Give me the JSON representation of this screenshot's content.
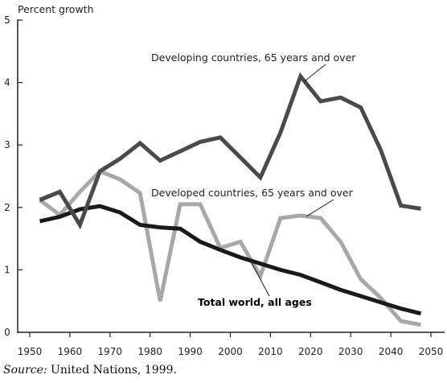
{
  "chart_data": {
    "type": "line",
    "ylabel": "Percent growth",
    "xlabel": "",
    "title": "",
    "xlim": [
      1950,
      2050
    ],
    "ylim": [
      0,
      5
    ],
    "x_ticks": [
      1950,
      1960,
      1970,
      1980,
      1990,
      2000,
      2010,
      2020,
      2030,
      2040,
      2050
    ],
    "y_ticks": [
      0,
      1,
      2,
      3,
      4,
      5
    ],
    "grid": false,
    "x": [
      1952.5,
      1957.5,
      1962.5,
      1967.5,
      1972.5,
      1977.5,
      1982.5,
      1987.5,
      1992.5,
      1997.5,
      2002.5,
      2007.5,
      2012.5,
      2017.5,
      2022.5,
      2027.5,
      2032.5,
      2037.5,
      2042.5,
      2047.5
    ],
    "series": [
      {
        "name": "Developing countries, 65 years and over",
        "color": "#4a4a4a",
        "values": [
          2.12,
          2.25,
          1.72,
          2.58,
          2.78,
          3.03,
          2.75,
          2.9,
          3.05,
          3.12,
          2.8,
          2.48,
          3.2,
          4.1,
          3.7,
          3.76,
          3.6,
          2.92,
          2.03,
          1.98
        ]
      },
      {
        "name": "Developed countries, 65 years and over",
        "color": "#a8a8a8",
        "values": [
          2.12,
          1.88,
          2.25,
          2.58,
          2.45,
          2.23,
          0.5,
          2.05,
          2.05,
          1.35,
          1.45,
          0.9,
          1.83,
          1.87,
          1.83,
          1.45,
          0.85,
          0.55,
          0.18,
          0.12
        ]
      },
      {
        "name": "Total world, all ages",
        "color": "#1a1a1a",
        "values": [
          1.78,
          1.85,
          1.97,
          2.02,
          1.92,
          1.72,
          1.68,
          1.66,
          1.45,
          1.32,
          1.2,
          1.1,
          1.0,
          0.92,
          0.8,
          0.68,
          0.58,
          0.48,
          0.38,
          0.3
        ]
      }
    ],
    "annotations": [
      {
        "text": "Developing countries, 65 years and over",
        "series": 0
      },
      {
        "text": "Developed countries, 65 years and over",
        "series": 1
      },
      {
        "text": "Total world, all ages",
        "series": 2
      }
    ]
  },
  "source": {
    "prefix": "Source:",
    "text": " United Nations, 1999."
  }
}
